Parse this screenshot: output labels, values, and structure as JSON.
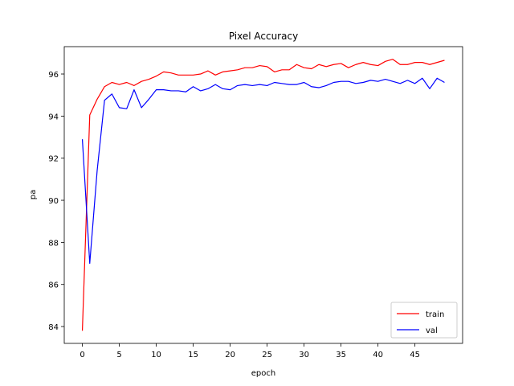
{
  "chart_data": {
    "type": "line",
    "title": "Pixel Accuracy",
    "xlabel": "epoch",
    "ylabel": "pa",
    "xlim": [
      -2.45,
      51.45
    ],
    "ylim": [
      83.2,
      97.3
    ],
    "xticks": [
      0,
      5,
      10,
      15,
      20,
      25,
      30,
      35,
      40,
      45
    ],
    "yticks": [
      84,
      86,
      88,
      90,
      92,
      94,
      96
    ],
    "grid": false,
    "legend_position": "lower-right",
    "x": [
      0,
      1,
      2,
      3,
      4,
      5,
      6,
      7,
      8,
      9,
      10,
      11,
      12,
      13,
      14,
      15,
      16,
      17,
      18,
      19,
      20,
      21,
      22,
      23,
      24,
      25,
      26,
      27,
      28,
      29,
      30,
      31,
      32,
      33,
      34,
      35,
      36,
      37,
      38,
      39,
      40,
      41,
      42,
      43,
      44,
      45,
      46,
      47,
      48,
      49
    ],
    "series": [
      {
        "name": "train",
        "color": "#ff0000",
        "values": [
          83.8,
          94.05,
          94.8,
          95.4,
          95.6,
          95.5,
          95.6,
          95.45,
          95.65,
          95.75,
          95.9,
          96.1,
          96.05,
          95.95,
          95.95,
          95.95,
          96.0,
          96.15,
          95.95,
          96.1,
          96.15,
          96.2,
          96.3,
          96.3,
          96.4,
          96.35,
          96.1,
          96.2,
          96.2,
          96.45,
          96.3,
          96.25,
          96.45,
          96.35,
          96.45,
          96.5,
          96.3,
          96.45,
          96.55,
          96.45,
          96.4,
          96.6,
          96.7,
          96.45,
          96.45,
          96.55,
          96.55,
          96.45,
          96.55,
          96.65
        ]
      },
      {
        "name": "val",
        "color": "#0000ff",
        "values": [
          92.9,
          87.0,
          91.4,
          94.75,
          95.05,
          94.4,
          94.35,
          95.25,
          94.4,
          94.8,
          95.25,
          95.25,
          95.2,
          95.2,
          95.15,
          95.4,
          95.2,
          95.3,
          95.5,
          95.3,
          95.25,
          95.45,
          95.5,
          95.45,
          95.5,
          95.45,
          95.6,
          95.55,
          95.5,
          95.5,
          95.6,
          95.4,
          95.35,
          95.45,
          95.6,
          95.65,
          95.65,
          95.55,
          95.6,
          95.7,
          95.65,
          95.75,
          95.65,
          95.55,
          95.7,
          95.55,
          95.8,
          95.3,
          95.8,
          95.6
        ]
      }
    ]
  }
}
